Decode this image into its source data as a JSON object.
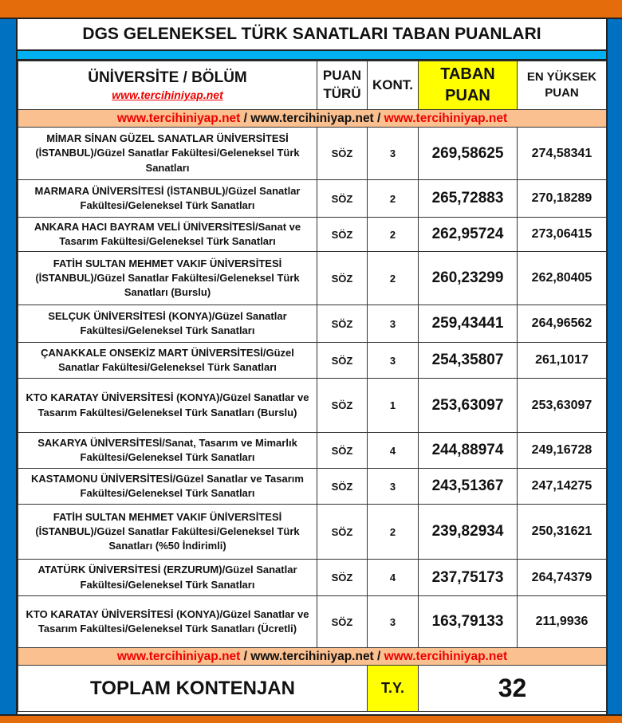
{
  "title": "DGS GELENEKSEL TÜRK SANATLARI TABAN PUANLARI",
  "header": {
    "university": "ÜNİVERSİTE / BÖLÜM",
    "site": "www.tercihiniyap.net",
    "score_type_1": "PUAN",
    "score_type_2": "TÜRÜ",
    "quota": "KONT.",
    "base_1": "TABAN",
    "base_2": "PUAN",
    "max_1": "EN YÜKSEK",
    "max_2": "PUAN"
  },
  "strip": {
    "a": "www.tercihiniyap.net",
    "sep1": " / ",
    "b": "www.tercihiniyap.net",
    "sep2": " / ",
    "c": "www.tercihiniyap.net"
  },
  "rows": [
    {
      "name": "MİMAR SİNAN GÜZEL SANATLAR ÜNİVERSİTESİ (İSTANBUL)/Güzel Sanatlar Fakültesi/Geleneksel Türk Sanatları",
      "type": "SÖZ",
      "quota": "3",
      "base": "269,58625",
      "max": "274,58341"
    },
    {
      "name": "MARMARA ÜNİVERSİTESİ (İSTANBUL)/Güzel Sanatlar Fakültesi/Geleneksel Türk Sanatları",
      "type": "SÖZ",
      "quota": "2",
      "base": "265,72883",
      "max": "270,18289"
    },
    {
      "name": "ANKARA HACI BAYRAM VELİ ÜNİVERSİTESİ/Sanat ve Tasarım Fakültesi/Geleneksel Türk Sanatları",
      "type": "SÖZ",
      "quota": "2",
      "base": "262,95724",
      "max": "273,06415"
    },
    {
      "name": "FATİH SULTAN MEHMET VAKIF ÜNİVERSİTESİ (İSTANBUL)/Güzel Sanatlar Fakültesi/Geleneksel Türk Sanatları (Burslu)",
      "type": "SÖZ",
      "quota": "2",
      "base": "260,23299",
      "max": "262,80405"
    },
    {
      "name": "SELÇUK ÜNİVERSİTESİ (KONYA)/Güzel Sanatlar Fakültesi/Geleneksel Türk Sanatları",
      "type": "SÖZ",
      "quota": "3",
      "base": "259,43441",
      "max": "264,96562"
    },
    {
      "name": "ÇANAKKALE ONSEKİZ MART ÜNİVERSİTESİ/Güzel Sanatlar Fakültesi/Geleneksel Türk Sanatları",
      "type": "SÖZ",
      "quota": "3",
      "base": "254,35807",
      "max": "261,1017"
    },
    {
      "name": "KTO KARATAY ÜNİVERSİTESİ (KONYA)/Güzel Sanatlar ve Tasarım Fakültesi/Geleneksel Türk Sanatları (Burslu)",
      "type": "SÖZ",
      "quota": "1",
      "base": "253,63097",
      "max": "253,63097"
    },
    {
      "name": "SAKARYA ÜNİVERSİTESİ/Sanat, Tasarım ve Mimarlık Fakültesi/Geleneksel Türk Sanatları",
      "type": "SÖZ",
      "quota": "4",
      "base": "244,88974",
      "max": "249,16728"
    },
    {
      "name": "KASTAMONU ÜNİVERSİTESİ/Güzel Sanatlar ve Tasarım Fakültesi/Geleneksel Türk Sanatları",
      "type": "SÖZ",
      "quota": "3",
      "base": "243,51367",
      "max": "247,14275"
    },
    {
      "name": "FATİH SULTAN MEHMET VAKIF ÜNİVERSİTESİ (İSTANBUL)/Güzel Sanatlar Fakültesi/Geleneksel Türk Sanatları (%50 İndirimli)",
      "type": "SÖZ",
      "quota": "2",
      "base": "239,82934",
      "max": "250,31621"
    },
    {
      "name": "ATATÜRK ÜNİVERSİTESİ (ERZURUM)/Güzel Sanatlar Fakültesi/Geleneksel Türk Sanatları",
      "type": "SÖZ",
      "quota": "4",
      "base": "237,75173",
      "max": "264,74379"
    },
    {
      "name": "KTO KARATAY ÜNİVERSİTESİ (KONYA)/Güzel Sanatlar ve Tasarım Fakültesi/Geleneksel Türk Sanatları (Ücretli)",
      "type": "SÖZ",
      "quota": "3",
      "base": "163,79133",
      "max": "211,9936"
    }
  ],
  "total": {
    "label": "TOPLAM KONTENJAN",
    "type": "T.Y.",
    "value": "32"
  },
  "colors": {
    "orange": "#e46c0a",
    "blue": "#0070c0",
    "cyan": "#00b0f0",
    "peach": "#fac090",
    "yellow": "#ffff00",
    "red": "#e00000"
  }
}
